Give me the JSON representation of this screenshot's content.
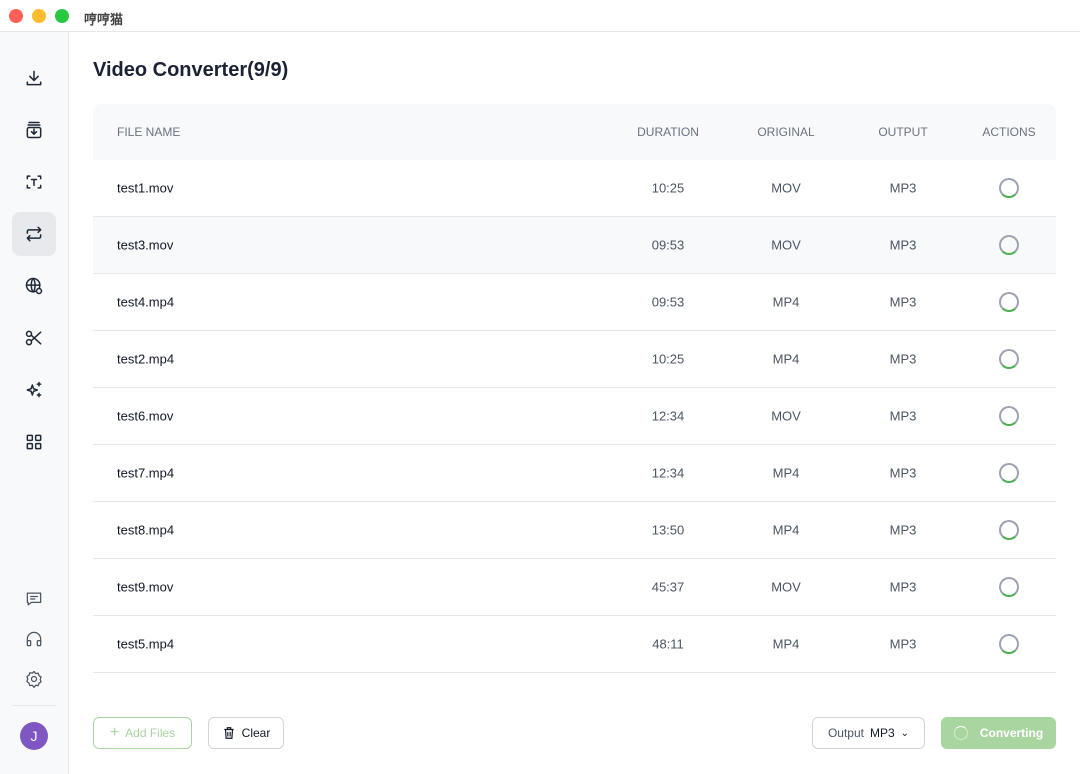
{
  "app": {
    "title": "哼哼猫"
  },
  "window_controls": {
    "close": "#fe5f57",
    "minimize": "#febc2e",
    "maximize": "#28c840"
  },
  "sidebar": {
    "items": [
      {
        "name": "download-icon"
      },
      {
        "name": "archive-download-icon"
      },
      {
        "name": "text-scan-icon"
      },
      {
        "name": "convert-icon",
        "active": true
      },
      {
        "name": "globe-search-icon"
      },
      {
        "name": "scissors-icon"
      },
      {
        "name": "sparkles-icon"
      },
      {
        "name": "grid-icon"
      }
    ],
    "bottom": [
      {
        "name": "message-icon"
      },
      {
        "name": "headset-icon"
      },
      {
        "name": "settings-icon"
      }
    ],
    "avatar": "J",
    "avatar_color": "#7e57c2"
  },
  "page": {
    "title": "Video Converter(9/9)"
  },
  "table": {
    "headers": [
      "FILE NAME",
      "DURATION",
      "ORIGINAL",
      "OUTPUT",
      "ACTIONS"
    ],
    "rows": [
      [
        "test1.mov",
        "10:25",
        "MOV",
        "MP3"
      ],
      [
        "test3.mov",
        "09:53",
        "MOV",
        "MP3"
      ],
      [
        "test4.mp4",
        "09:53",
        "MP4",
        "MP3"
      ],
      [
        "test2.mp4",
        "10:25",
        "MP4",
        "MP3"
      ],
      [
        "test6.mov",
        "12:34",
        "MOV",
        "MP3"
      ],
      [
        "test7.mp4",
        "12:34",
        "MP4",
        "MP3"
      ],
      [
        "test8.mp4",
        "13:50",
        "MP4",
        "MP3"
      ],
      [
        "test9.mov",
        "45:37",
        "MOV",
        "MP3"
      ],
      [
        "test5.mp4",
        "48:11",
        "MP4",
        "MP3"
      ]
    ]
  },
  "footer": {
    "add_files": "Add Files",
    "clear": "Clear",
    "output_label": "Output",
    "output_value": "MP3",
    "convert": "Converting"
  },
  "colors": {
    "accent": "#4caf50",
    "convert_bg": "#a9d5a0"
  }
}
